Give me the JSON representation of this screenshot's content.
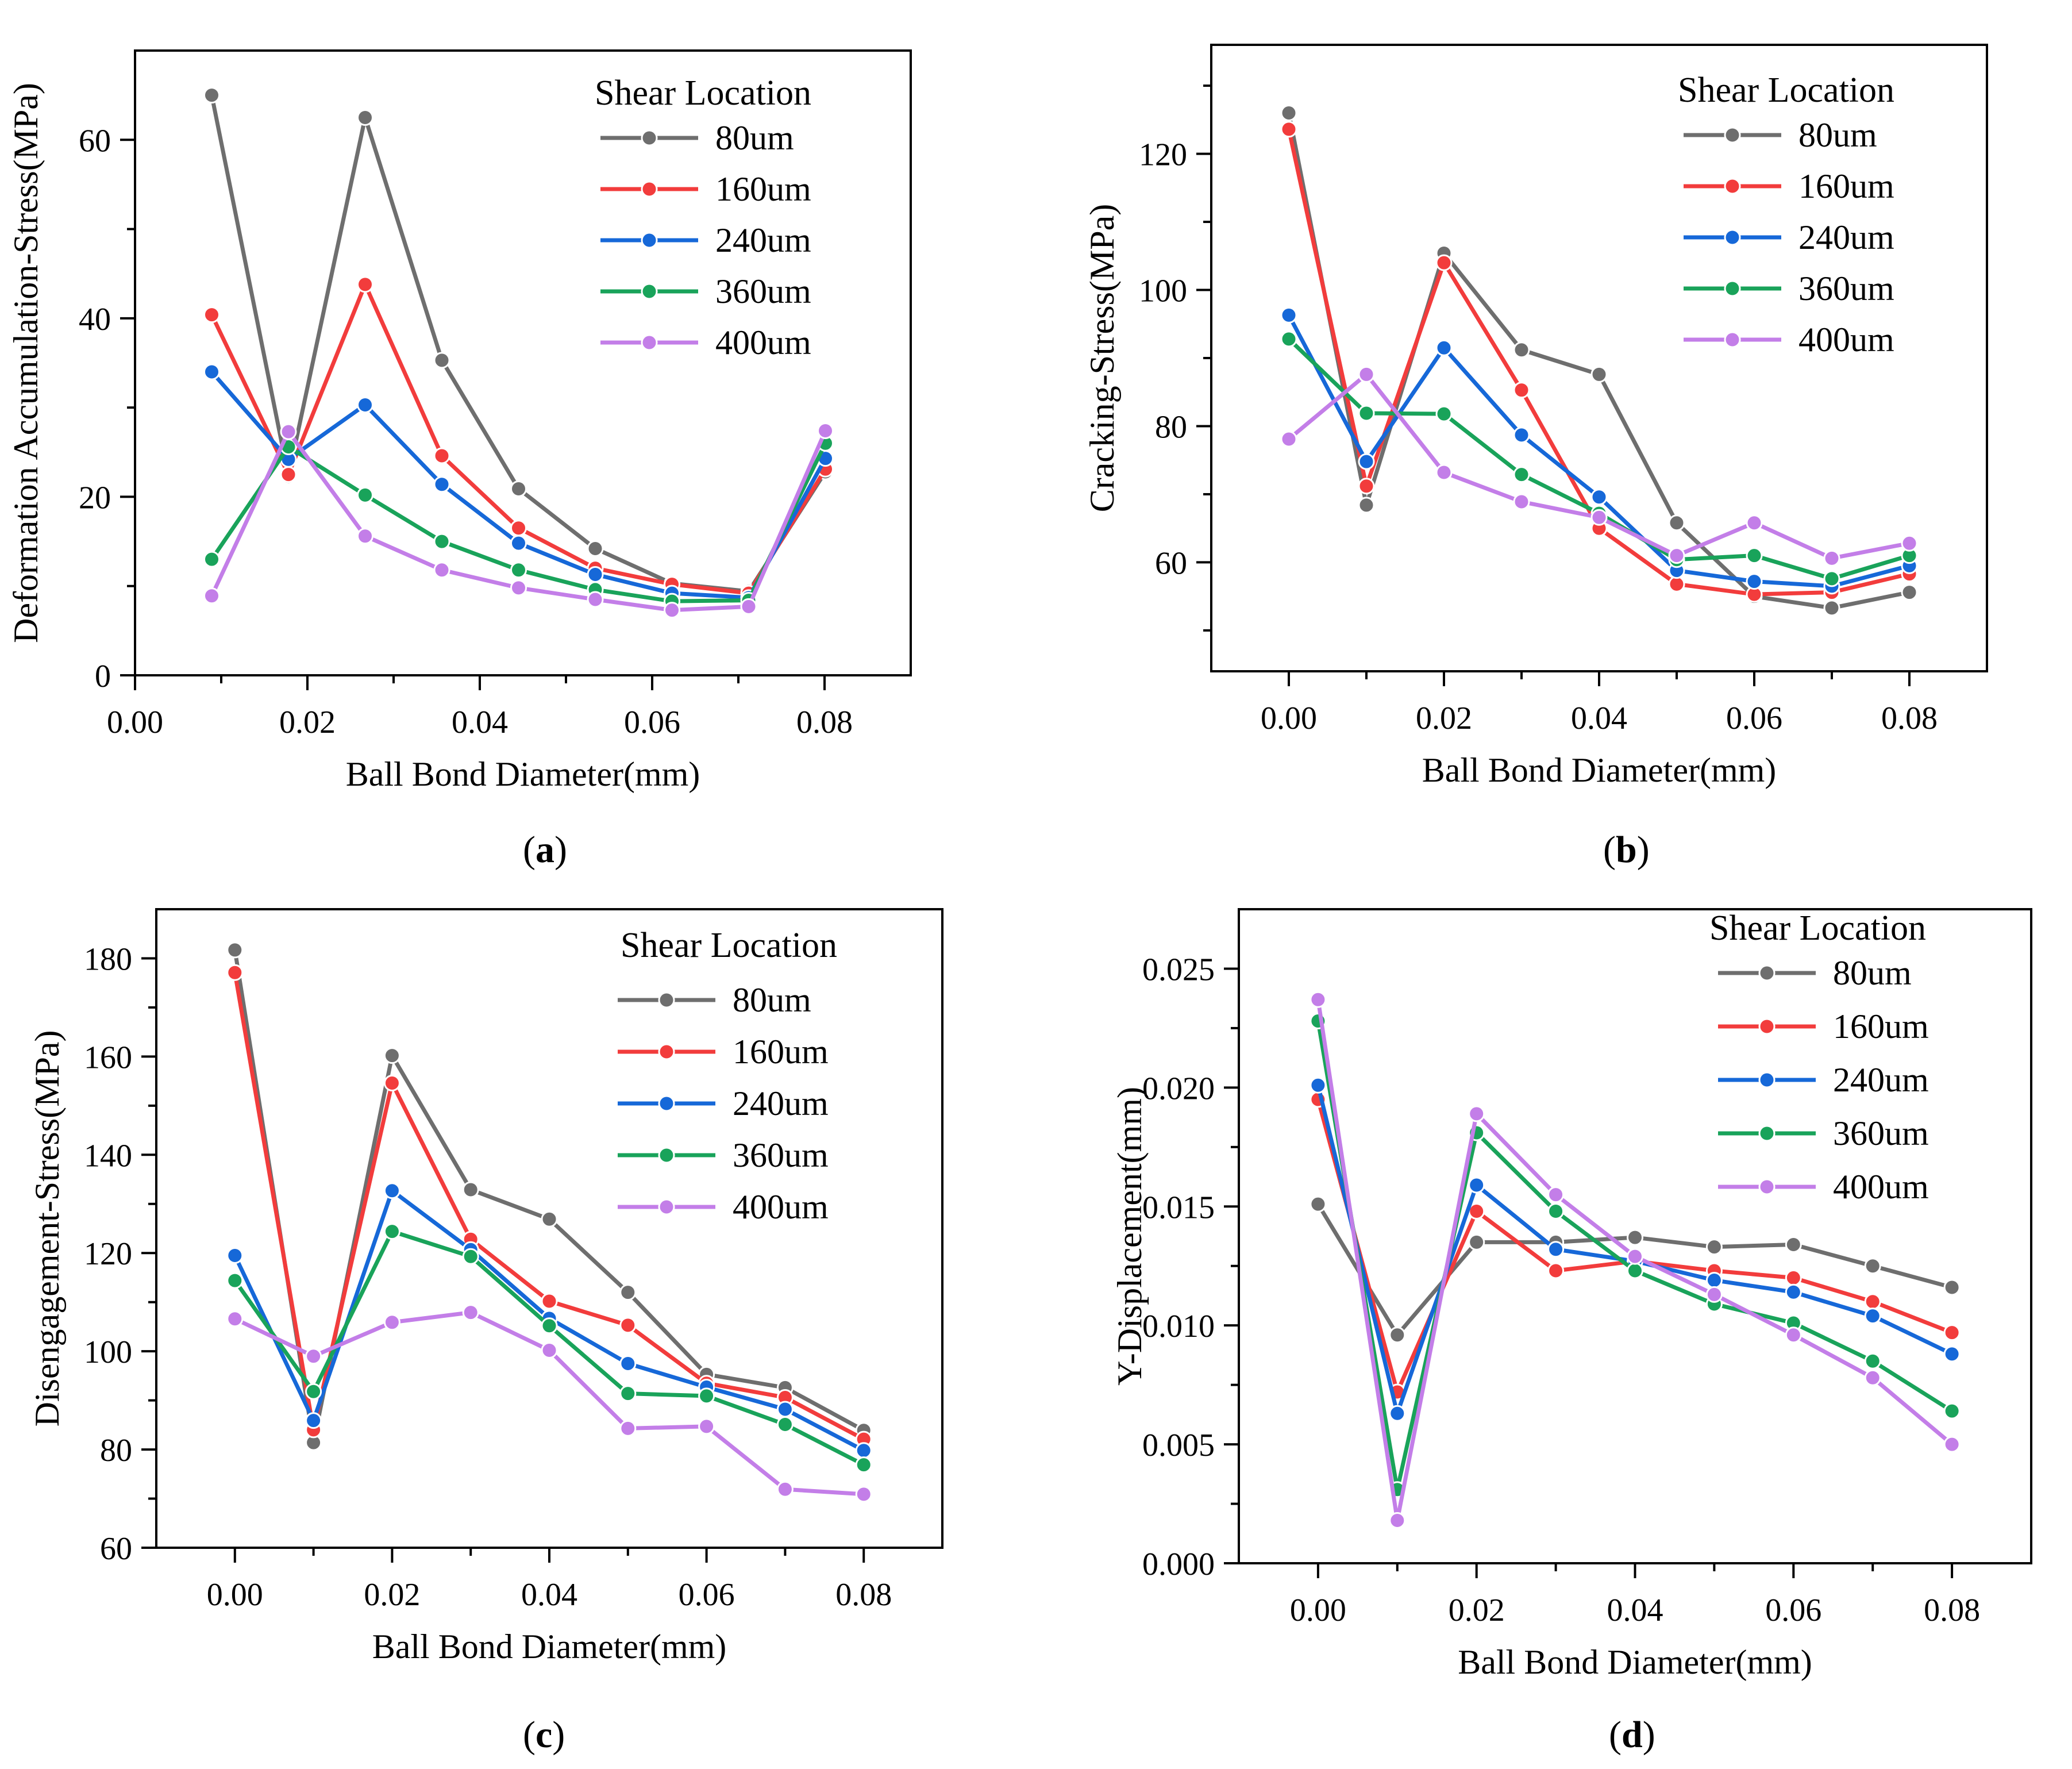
{
  "figure": {
    "panel_tags": [
      "(a)",
      "(b)",
      "(c)",
      "(d)"
    ]
  },
  "colors": {
    "80um": "#6e6e6e",
    "160um": "#f23c3c",
    "240um": "#1668d8",
    "360um": "#19a35a",
    "400um": "#c37ee8"
  },
  "chart_data": [
    {
      "type": "line",
      "panel": "a",
      "panel_label": {
        "open": "(",
        "letter": "a",
        "close": ")"
      },
      "title": "",
      "xlabel": "Ball Bond Diameter(mm)",
      "ylabel": "Deformation Accumulation-Stress(MPa)",
      "xlim": [
        0.0,
        0.09
      ],
      "ylim": [
        0,
        70
      ],
      "xticks": [
        0.0,
        0.02,
        0.04,
        0.06,
        0.08
      ],
      "xtick_labels": [
        "0.00",
        "0.02",
        "0.04",
        "0.06",
        "0.08"
      ],
      "yticks": [
        0,
        20,
        40,
        60
      ],
      "ytick_labels": [
        "0",
        "20",
        "40",
        "60"
      ],
      "grid": false,
      "legend_title": "Shear Location",
      "legend_position": "top-right",
      "x": [
        0.0089,
        0.0178,
        0.0267,
        0.0356,
        0.0445,
        0.0534,
        0.0623,
        0.0712,
        0.0801
      ],
      "series": [
        {
          "name": "80um",
          "values": [
            65.0,
            22.3,
            62.5,
            35.3,
            20.9,
            14.2,
            10.3,
            9.4,
            22.8
          ]
        },
        {
          "name": "160um",
          "values": [
            40.4,
            22.5,
            43.8,
            24.6,
            16.5,
            12.0,
            10.2,
            9.2,
            23.1
          ]
        },
        {
          "name": "240um",
          "values": [
            34.0,
            24.2,
            30.3,
            21.4,
            14.8,
            11.3,
            9.2,
            8.7,
            24.3
          ]
        },
        {
          "name": "360um",
          "values": [
            13.0,
            25.6,
            20.2,
            15.0,
            11.8,
            9.6,
            8.3,
            8.4,
            26.0
          ]
        },
        {
          "name": "400um",
          "values": [
            8.9,
            27.3,
            15.6,
            11.8,
            9.8,
            8.5,
            7.3,
            7.7,
            27.4
          ]
        }
      ]
    },
    {
      "type": "line",
      "panel": "b",
      "panel_label": {
        "open": "(",
        "letter": "b",
        "close": ")"
      },
      "title": "",
      "xlabel": "Ball Bond Diameter(mm)",
      "ylabel": "Cracking-Stress(MPa)",
      "xlim": [
        -0.01,
        0.09
      ],
      "ylim": [
        44,
        136
      ],
      "xticks": [
        0.0,
        0.02,
        0.04,
        0.06,
        0.08
      ],
      "xtick_labels": [
        "0.00",
        "0.02",
        "0.04",
        "0.06",
        "0.08"
      ],
      "yticks": [
        60,
        80,
        100,
        120
      ],
      "ytick_labels": [
        "60",
        "80",
        "100",
        "120"
      ],
      "grid": false,
      "legend_title": "Shear Location",
      "legend_position": "top-right",
      "x": [
        0.0,
        0.01,
        0.02,
        0.03,
        0.04,
        0.05,
        0.06,
        0.07,
        0.08
      ],
      "series": [
        {
          "name": "80um",
          "values": [
            126.0,
            68.4,
            105.4,
            91.2,
            87.6,
            65.8,
            55.0,
            53.3,
            55.6
          ]
        },
        {
          "name": "160um",
          "values": [
            123.6,
            71.2,
            104.0,
            85.3,
            65.0,
            56.8,
            55.3,
            55.6,
            58.3
          ]
        },
        {
          "name": "240um",
          "values": [
            96.3,
            74.8,
            91.5,
            78.7,
            69.6,
            58.8,
            57.2,
            56.5,
            59.5
          ]
        },
        {
          "name": "360um",
          "values": [
            92.8,
            81.9,
            81.8,
            72.9,
            67.2,
            60.4,
            61.0,
            57.6,
            61.0
          ]
        },
        {
          "name": "400um",
          "values": [
            78.1,
            87.6,
            73.2,
            68.9,
            66.6,
            61.0,
            65.8,
            60.6,
            62.8
          ]
        }
      ]
    },
    {
      "type": "line",
      "panel": "c",
      "panel_label": {
        "open": "(",
        "letter": "c",
        "close": ")"
      },
      "title": "",
      "xlabel": "Ball Bond Diameter(mm)",
      "ylabel": "Disengagement-Stress(MPa)",
      "xlim": [
        -0.01,
        0.09
      ],
      "ylim": [
        60,
        190
      ],
      "xticks": [
        0.0,
        0.02,
        0.04,
        0.06,
        0.08
      ],
      "xtick_labels": [
        "0.00",
        "0.02",
        "0.04",
        "0.06",
        "0.08"
      ],
      "yticks": [
        60,
        80,
        100,
        120,
        140,
        160,
        180
      ],
      "ytick_labels": [
        "60",
        "80",
        "100",
        "120",
        "140",
        "160",
        "180"
      ],
      "grid": false,
      "legend_title": "Shear Location",
      "legend_position": "top-right",
      "x": [
        0.0,
        0.01,
        0.02,
        0.03,
        0.04,
        0.05,
        0.06,
        0.07,
        0.08
      ],
      "series": [
        {
          "name": "80um",
          "values": [
            181.7,
            81.4,
            160.2,
            132.9,
            126.9,
            112.0,
            95.3,
            92.6,
            83.9
          ]
        },
        {
          "name": "160um",
          "values": [
            177.1,
            84.0,
            154.6,
            122.8,
            110.2,
            105.3,
            93.5,
            90.6,
            82.1
          ]
        },
        {
          "name": "240um",
          "values": [
            119.5,
            85.9,
            132.7,
            120.7,
            106.7,
            97.5,
            92.7,
            88.2,
            79.8
          ]
        },
        {
          "name": "360um",
          "values": [
            114.4,
            91.8,
            124.4,
            119.3,
            105.2,
            91.4,
            90.9,
            85.1,
            76.9
          ]
        },
        {
          "name": "400um",
          "values": [
            106.6,
            99.0,
            105.9,
            107.9,
            100.2,
            84.3,
            84.7,
            71.9,
            70.9
          ]
        }
      ]
    },
    {
      "type": "line",
      "panel": "d",
      "panel_label": {
        "open": "(",
        "letter": "d",
        "close": ")"
      },
      "title": "",
      "xlabel": "Ball Bond Diameter(mm)",
      "ylabel": "Y-Displacement(mm)",
      "xlim": [
        -0.01,
        0.09
      ],
      "ylim": [
        0.0,
        0.0275
      ],
      "xticks": [
        0.0,
        0.02,
        0.04,
        0.06,
        0.08
      ],
      "xtick_labels": [
        "0.00",
        "0.02",
        "0.04",
        "0.06",
        "0.08"
      ],
      "yticks": [
        0.0,
        0.005,
        0.01,
        0.015,
        0.02,
        0.025
      ],
      "ytick_labels": [
        "0.000",
        "0.005",
        "0.010",
        "0.015",
        "0.020",
        "0.025"
      ],
      "grid": false,
      "legend_title": "Shear Location",
      "legend_position": "top-right",
      "x": [
        0.0,
        0.01,
        0.02,
        0.03,
        0.04,
        0.05,
        0.06,
        0.07,
        0.08
      ],
      "series": [
        {
          "name": "80um",
          "values": [
            0.0151,
            0.0096,
            0.0135,
            0.0135,
            0.0137,
            0.0133,
            0.0134,
            0.0125,
            0.0116
          ]
        },
        {
          "name": "160um",
          "values": [
            0.0195,
            0.0072,
            0.0148,
            0.0123,
            0.0127,
            0.0123,
            0.012,
            0.011,
            0.0097
          ]
        },
        {
          "name": "240um",
          "values": [
            0.0201,
            0.0063,
            0.0159,
            0.0132,
            0.0127,
            0.0119,
            0.0114,
            0.0104,
            0.0088
          ]
        },
        {
          "name": "360um",
          "values": [
            0.0228,
            0.0031,
            0.0181,
            0.0148,
            0.0123,
            0.0109,
            0.0101,
            0.0085,
            0.0064
          ]
        },
        {
          "name": "400um",
          "values": [
            0.0237,
            0.0018,
            0.0189,
            0.0155,
            0.0129,
            0.0113,
            0.0096,
            0.0078,
            0.005
          ]
        }
      ]
    }
  ]
}
